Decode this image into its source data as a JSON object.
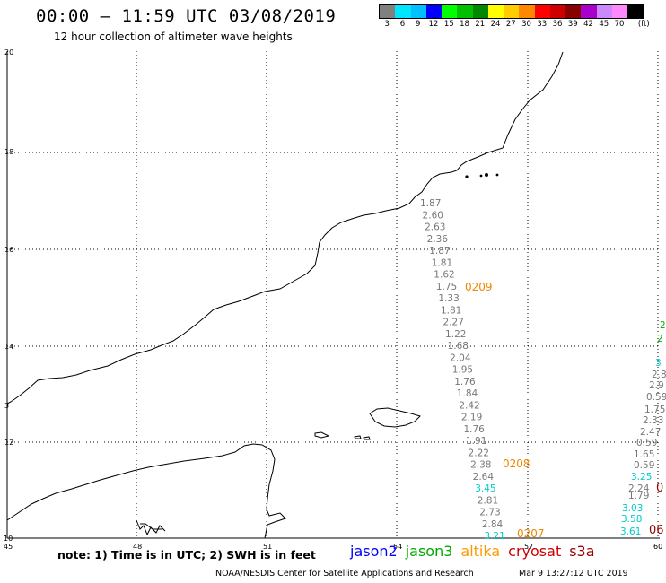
{
  "title": "00:00 – 11:59 UTC 03/08/2019",
  "subtitle": "12 hour collection of altimeter wave heights",
  "colorbar": {
    "colors": [
      "#808080",
      "#00e5ff",
      "#00c0ff",
      "#0000ff",
      "#00ff00",
      "#00c000",
      "#008800",
      "#ffff00",
      "#ffcc00",
      "#ff8800",
      "#ff0000",
      "#cc0000",
      "#880000",
      "#aa00cc",
      "#cc88ff",
      "#ff88ff",
      "#000000"
    ],
    "tick_labels": [
      "3",
      "6",
      "9",
      "12",
      "15",
      "18",
      "21",
      "24",
      "27",
      "30",
      "33",
      "36",
      "39",
      "42",
      "45",
      "70",
      "(ft)"
    ]
  },
  "axes": {
    "lat_labels": [
      "20",
      "18",
      "16",
      "14",
      "12",
      "10"
    ],
    "lon_labels": [
      "45",
      "48",
      "51",
      "54",
      "57",
      "60"
    ],
    "extra_left_label": "3"
  },
  "track_color": "#777777",
  "track_values": [
    "1.87",
    "2.60",
    "2.63",
    "2.36",
    "1.87",
    "1.81",
    "1.62",
    "1.75",
    "1.33",
    "1.81",
    "2.27",
    "1.22",
    "1.68",
    "2.04",
    "1.95",
    "1.76",
    "1.84",
    "2.42",
    "2.19",
    "1.76",
    "1.91",
    "2.22",
    "2.38",
    "2.64",
    "3.45",
    "2.81",
    "2.73",
    "2.84",
    "3.21"
  ],
  "track_time_labels": [
    "0209",
    "0208",
    "0207"
  ],
  "time_color": "#ee8800",
  "right_track_values": [
    "1.65",
    "0.59",
    "3.25",
    "2.24",
    "1.79",
    "3.03",
    "3.58",
    "3.61"
  ],
  "edge_values": [
    "2",
    "2",
    "3",
    "2.8",
    "2.9",
    "0.59",
    "1.75",
    "2.33",
    "2.47",
    "0.59"
  ],
  "edge_time_labels": [
    "0",
    "06"
  ],
  "note": "note: 1) Time is in UTC; 2) SWH is in feet",
  "legend": [
    {
      "label": "jason2",
      "color": "#0000ff"
    },
    {
      "label": "jason3",
      "color": "#00aa00"
    },
    {
      "label": "altika",
      "color": "#ff9900"
    },
    {
      "label": "cryosat",
      "color": "#cc0000"
    },
    {
      "label": "s3a",
      "color": "#990000"
    }
  ],
  "credit": "NOAA/NESDIS Center for Satellite Applications and Research",
  "timestamp": "Mar  9 13:27:12 UTC 2019"
}
